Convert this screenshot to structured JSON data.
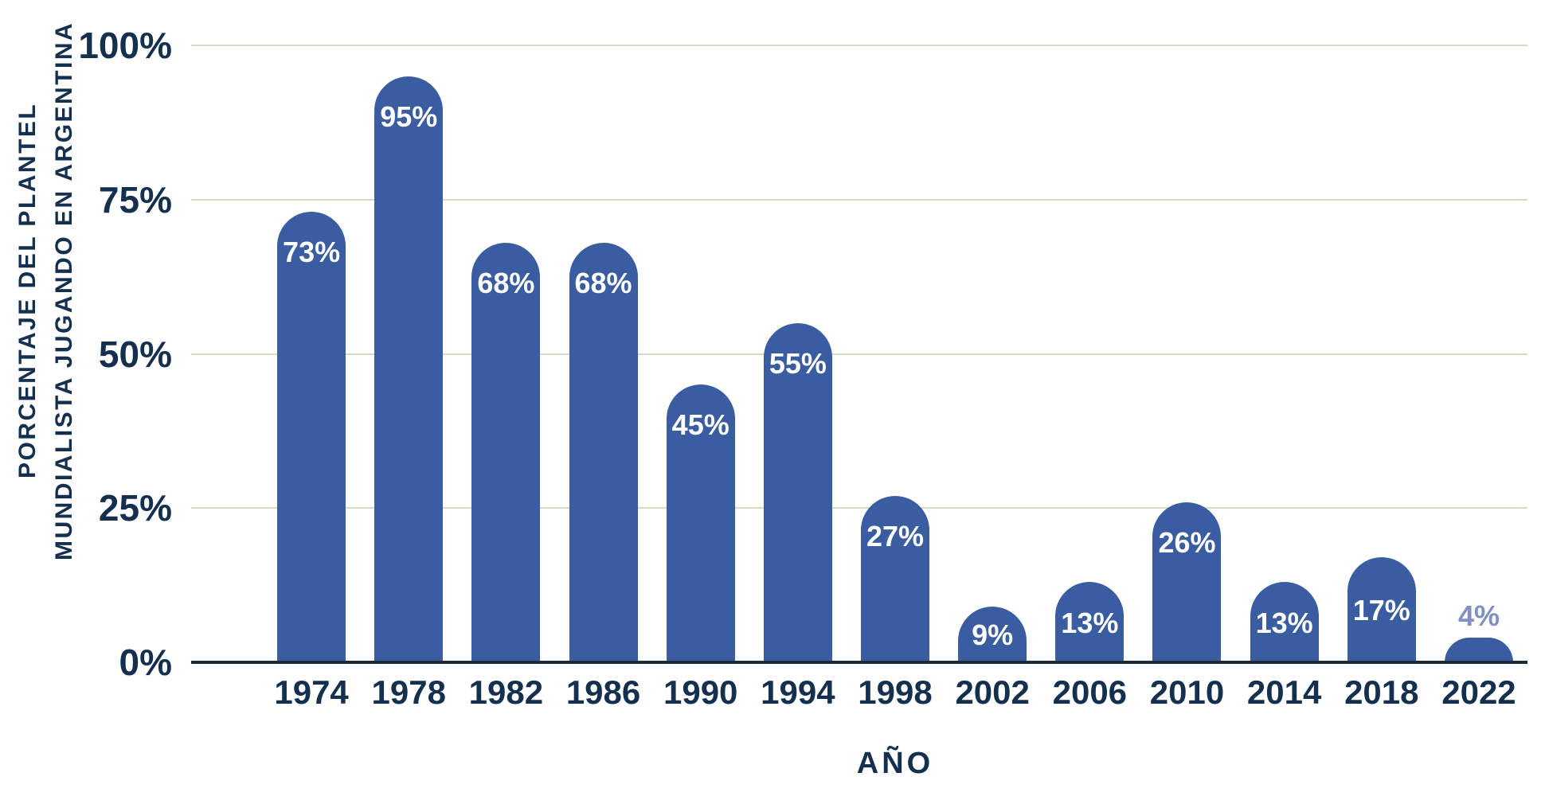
{
  "chart_data": {
    "type": "bar",
    "title": "",
    "categories": [
      "1974",
      "1978",
      "1982",
      "1986",
      "1990",
      "1994",
      "1998",
      "2002",
      "2006",
      "2010",
      "2014",
      "2018",
      "2022"
    ],
    "values": [
      73,
      95,
      68,
      68,
      45,
      55,
      27,
      9,
      13,
      26,
      13,
      17,
      4
    ],
    "value_labels": [
      "73%",
      "95%",
      "68%",
      "68%",
      "45%",
      "55%",
      "27%",
      "9%",
      "13%",
      "26%",
      "13%",
      "17%",
      "4%"
    ],
    "xlabel": "AÑO",
    "ylabel": "PORCENTAJE DEL PLANTEL MUNDIALISTA JUGANDO EN ARGENTINA",
    "ylabel_line1": "PORCENTAJE DEL PLANTEL",
    "ylabel_line2": "MUNDIALISTA JUGANDO EN ARGENTINA",
    "ylim": [
      0,
      100
    ],
    "yticks": [
      "0%",
      "25%",
      "50%",
      "75%",
      "100%"
    ],
    "ytick_values": [
      0,
      25,
      50,
      75,
      100
    ],
    "grid": true,
    "legend": "none",
    "colors": {
      "bar": "#3A5CA0",
      "grid": "#D8DBC3",
      "axis": "#1C2B3A",
      "text": "#15304E",
      "inside": "#FFFFFF",
      "outside": "#7E90C4"
    }
  }
}
